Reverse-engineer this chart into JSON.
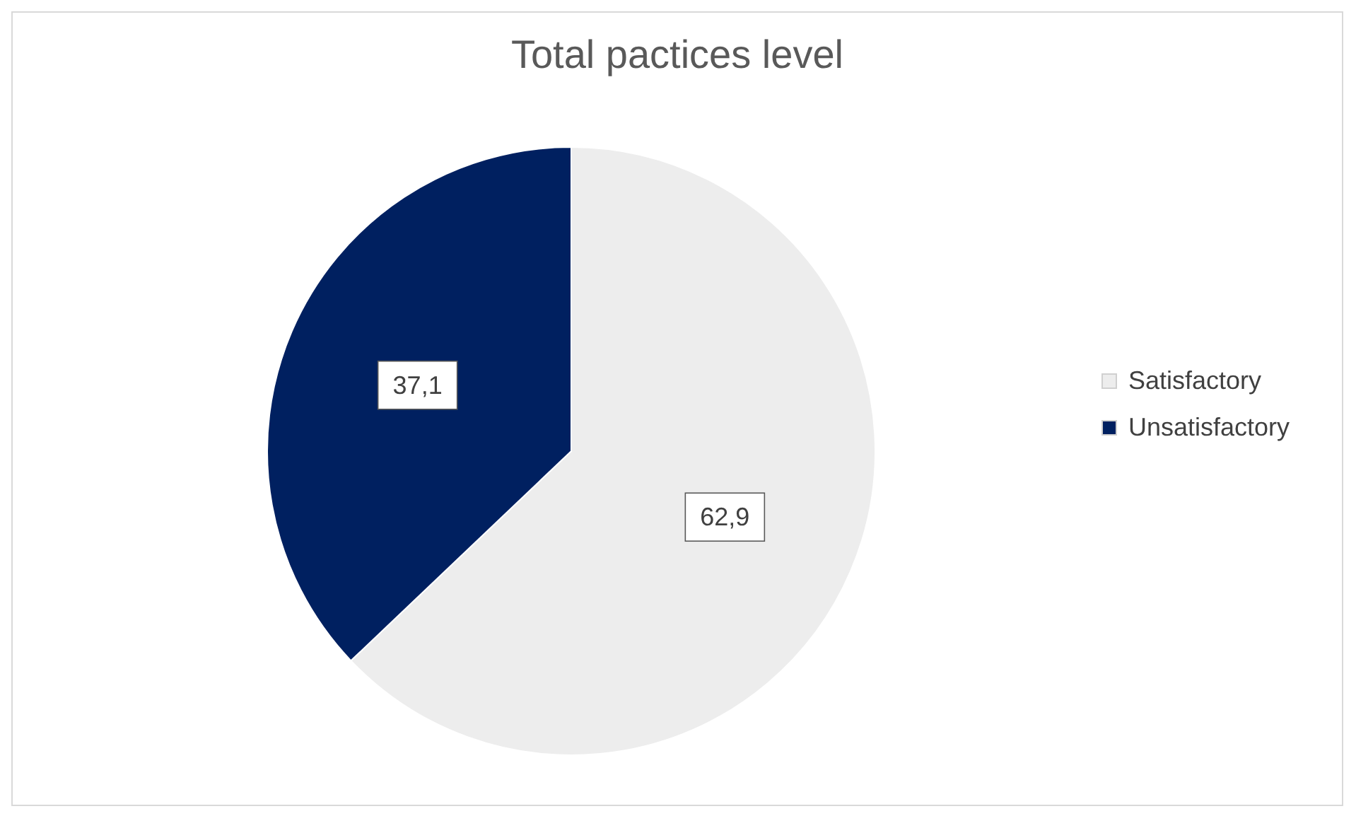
{
  "chart_data": {
    "type": "pie",
    "title": "Total pactices level",
    "categories": [
      "Satisfactory",
      "Unsatisfactory"
    ],
    "values": [
      62.9,
      37.1
    ],
    "value_labels": [
      "62,9",
      "37,1"
    ],
    "colors": [
      "#ededed",
      "#002060"
    ],
    "legend": "right"
  }
}
